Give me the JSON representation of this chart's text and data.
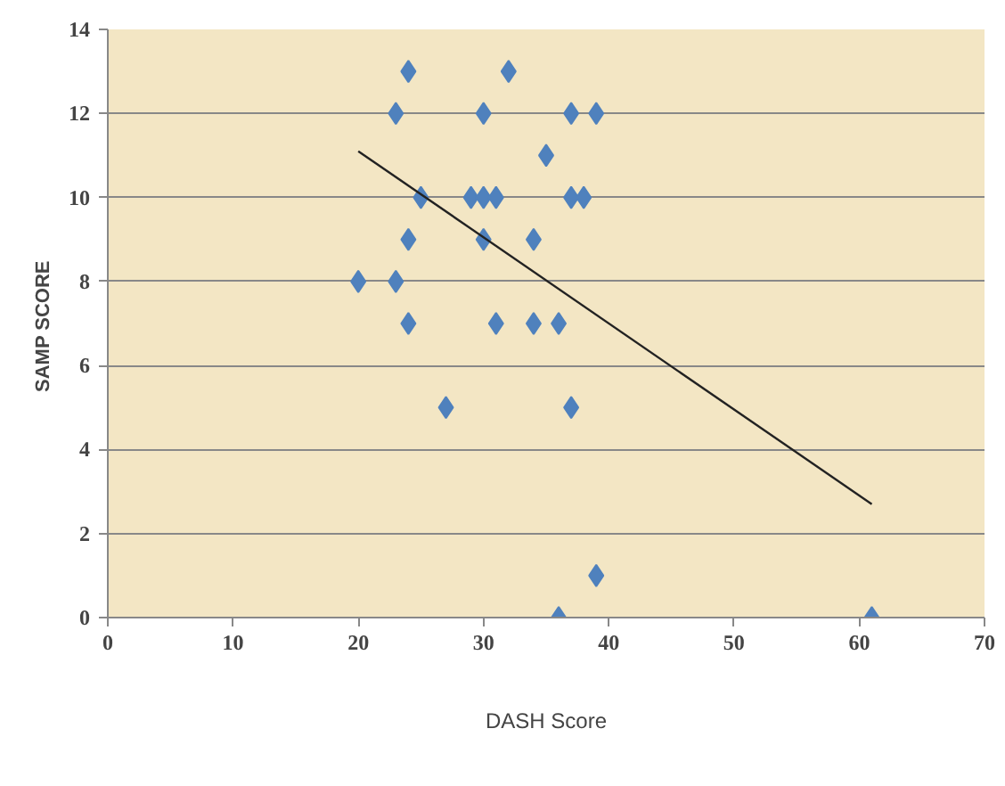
{
  "chart_data": {
    "type": "scatter",
    "xlabel": "DASH Score",
    "ylabel": "SAMP  SCORE",
    "xlim": [
      0,
      70
    ],
    "ylim": [
      0,
      14
    ],
    "xticks": [
      0,
      10,
      20,
      30,
      40,
      50,
      60,
      70
    ],
    "yticks": [
      0,
      2,
      4,
      6,
      8,
      10,
      12,
      14
    ],
    "grid": "y",
    "series": [
      {
        "marker": "diamond",
        "color": "#4f81bd",
        "x": [
          20,
          23,
          23,
          24,
          24,
          24,
          25,
          27,
          29,
          30,
          30,
          30,
          31,
          31,
          32,
          34,
          34,
          35,
          36,
          36,
          37,
          37,
          37,
          38,
          39,
          39,
          61
        ],
        "values": [
          8,
          12,
          8,
          13,
          9,
          7,
          10,
          5,
          10,
          12,
          10,
          9,
          10,
          7,
          13,
          9,
          7,
          11,
          7,
          0,
          12,
          10,
          5,
          10,
          12,
          1,
          0
        ]
      },
      {
        "type": "line",
        "color": "#222222",
        "x": [
          20,
          61
        ],
        "values": [
          11.1,
          2.7
        ]
      }
    ]
  }
}
